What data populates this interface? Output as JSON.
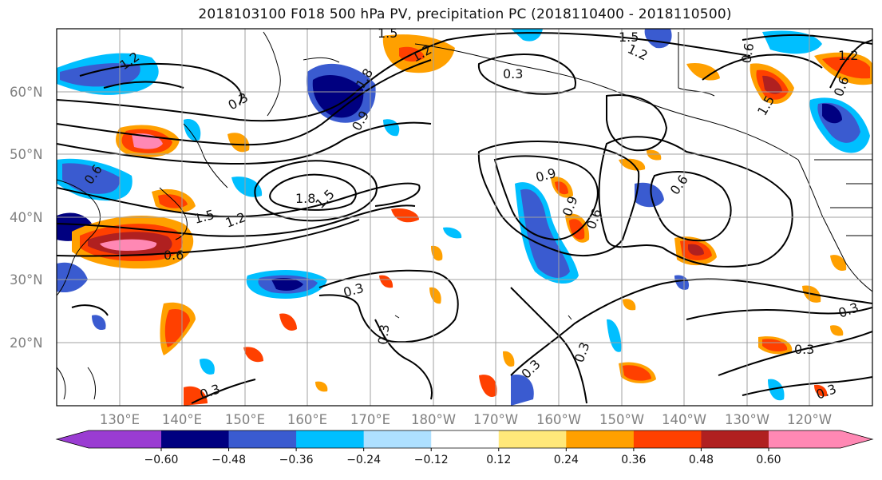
{
  "title": "2018103100 F018 500 hPa PV, precipitation PC (2018110400 - 2018110500)",
  "colors": {
    "background": "#ffffff",
    "grid": "#a0a0a0",
    "contour": "#000000",
    "coast": "#000000"
  },
  "map": {
    "lat_labels": [
      "60°N",
      "50°N",
      "40°N",
      "30°N",
      "20°N"
    ],
    "lon_labels": [
      "130°E",
      "140°E",
      "150°E",
      "160°E",
      "170°E",
      "180°W",
      "170°W",
      "160°W",
      "150°W",
      "140°W",
      "130°W",
      "120°W"
    ],
    "lat_range": [
      10,
      70
    ],
    "lon_range": [
      120,
      250
    ]
  },
  "contour_labels": [
    "1.5",
    "1.2",
    "1.2",
    "0.3",
    "1.8",
    "0.9",
    "0.3",
    "1.5",
    "1.2",
    "0.6",
    "1.5",
    "1.2",
    "0.6",
    "1.8",
    "1.5",
    "1.5",
    "1.2",
    "0.6",
    "0.9",
    "0.9",
    "0.6",
    "0.6",
    "0.6",
    "0.3",
    "0.3",
    "0.3",
    "0.3",
    "0.3",
    "0.3",
    "0.3",
    "0.3"
  ],
  "colorbar": {
    "colors": [
      "#9a3cd2",
      "#000080",
      "#3a5bd0",
      "#00bfff",
      "#aee0ff",
      "#ffffff",
      "#ffe87a",
      "#ffa000",
      "#ff4000",
      "#b02020",
      "#ff88b4"
    ],
    "tick_labels": [
      "−0.60",
      "−0.48",
      "−0.36",
      "−0.24",
      "−0.12",
      "0.12",
      "0.24",
      "0.36",
      "0.48",
      "0.60"
    ]
  }
}
